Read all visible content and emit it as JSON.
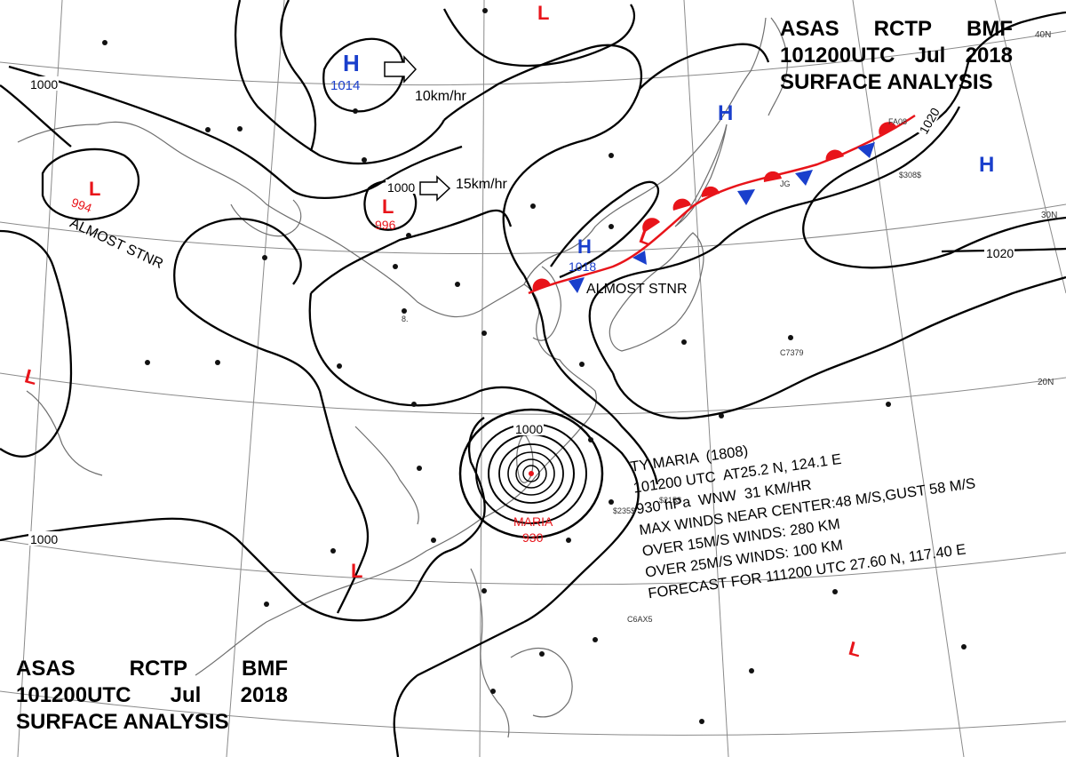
{
  "title": {
    "lines": [
      [
        "ASAS",
        "RCTP",
        "BMF"
      ],
      [
        "101200UTC",
        "Jul",
        "2018"
      ],
      [
        "SURFACE ANALYSIS"
      ]
    ]
  },
  "pressure_centers": [
    {
      "type": "H",
      "color": "#1a3fcc",
      "value": "1014"
    },
    {
      "type": "L",
      "color": "#e8141a",
      "value": "994",
      "note": "ALMOST STNR"
    },
    {
      "type": "L",
      "color": "#e8141a",
      "value": "996"
    },
    {
      "type": "H",
      "color": "#1a3fcc",
      "value": "1018",
      "note": "ALMOST STNR"
    },
    {
      "type": "L",
      "color": "#e8141a",
      "value": ""
    },
    {
      "type": "H",
      "color": "#1a3fcc",
      "value": ""
    },
    {
      "type": "H",
      "color": "#1a3fcc",
      "value": ""
    },
    {
      "type": "L",
      "color": "#e8141a",
      "value": ""
    },
    {
      "type": "L",
      "color": "#e8141a",
      "value": ""
    },
    {
      "type": "L",
      "color": "#e8141a",
      "value": ""
    },
    {
      "type": "L",
      "color": "#e8141a",
      "value": ""
    }
  ],
  "movement_labels": [
    "10km/hr",
    "15km/hr"
  ],
  "isobar_labels": [
    "1000",
    "1000",
    "1000",
    "1000",
    "1020",
    "1020"
  ],
  "lat_labels": [
    "40N",
    "30N",
    "20N"
  ],
  "typhoon": {
    "name": "MARIA",
    "pressure": "930",
    "lines": [
      "TY MARIA  (1808)",
      "101200 UTC  AT25.2 N, 124.1 E",
      "930 hPa  WNW  31 KM/HR",
      "MAX WINDS NEAR CENTER:48 M/S,GUST 58 M/S",
      "OVER 15M/S WINDS: 280 KM",
      "OVER 25M/S WINDS: 100 KM",
      "FORECAST FOR 111200 UTC 27.60 N, 117.40 E"
    ]
  },
  "station_labels": [
    "$235$",
    "$215$",
    "$308$",
    "C7379",
    "C6AX5",
    "JG",
    "FA08",
    "8."
  ],
  "colors": {
    "high": "#1a3fcc",
    "low": "#e8141a",
    "warm_front": "#e8141a",
    "cold_front": "#1a3fcc",
    "isobar": "#000000",
    "coast": "#777777"
  }
}
